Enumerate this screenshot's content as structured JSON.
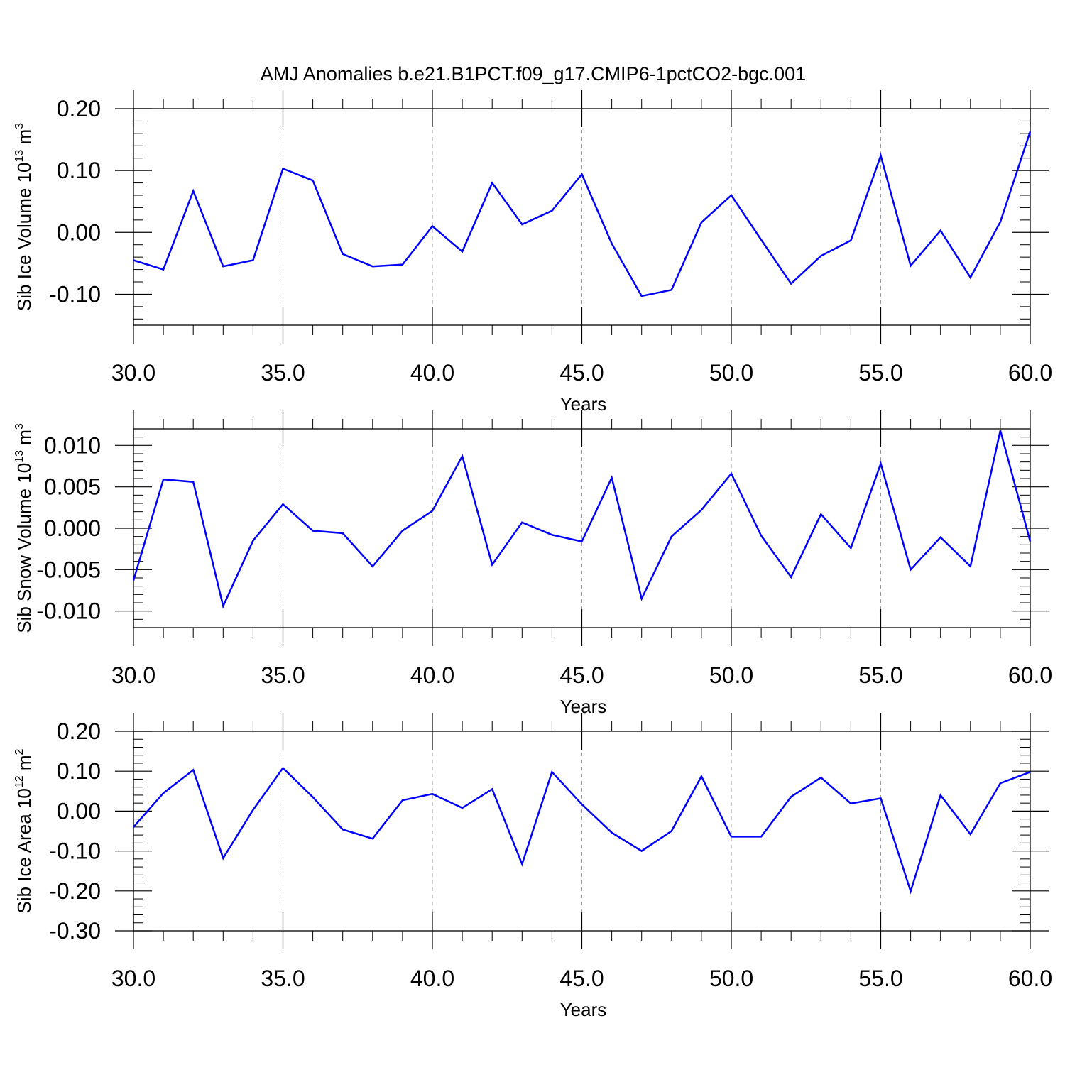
{
  "title": "AMJ Anomalies b.e21.B1PCT.f09_g17.CMIP6-1pctCO2-bgc.001",
  "chart_data": [
    {
      "type": "line",
      "xlabel": "Years",
      "ylabel": "Sib Ice Volume 10",
      "ylabel_exp": "13",
      "ylabel_unit": " m",
      "ylabel_unit_exp": "3",
      "xlim": [
        30,
        60
      ],
      "ylim": [
        -0.15,
        0.2
      ],
      "xticks": [
        30,
        35,
        40,
        45,
        50,
        55,
        60
      ],
      "xtick_labels": [
        "30.0",
        "35.0",
        "40.0",
        "45.0",
        "50.0",
        "55.0",
        "60.0"
      ],
      "yticks": [
        0.2,
        0.1,
        0.0,
        -0.1
      ],
      "ytick_labels": [
        "0.20",
        "0.10",
        "0.00",
        "-0.10"
      ],
      "yminor_step": 0.02,
      "grid": "dashed vertical at major x ticks",
      "line_color": "#0000ff",
      "x": [
        30,
        31,
        32,
        33,
        34,
        35,
        36,
        37,
        38,
        39,
        40,
        41,
        42,
        43,
        44,
        45,
        46,
        47,
        48,
        49,
        50,
        51,
        52,
        53,
        54,
        55,
        56,
        57,
        58,
        59,
        60
      ],
      "y": [
        -0.045,
        -0.06,
        0.067,
        -0.055,
        -0.045,
        0.103,
        0.084,
        -0.035,
        -0.055,
        -0.052,
        0.01,
        -0.031,
        0.08,
        0.013,
        0.035,
        0.094,
        -0.018,
        -0.103,
        -0.093,
        0.016,
        0.06,
        -0.012,
        -0.083,
        -0.038,
        -0.013,
        0.124,
        -0.054,
        0.003,
        -0.073,
        0.017,
        0.163
      ]
    },
    {
      "type": "line",
      "xlabel": "Years",
      "ylabel": "Sib Snow Volume 10",
      "ylabel_exp": "13",
      "ylabel_unit": " m",
      "ylabel_unit_exp": "3",
      "xlim": [
        30,
        60
      ],
      "ylim": [
        -0.012,
        0.012
      ],
      "xticks": [
        30,
        35,
        40,
        45,
        50,
        55,
        60
      ],
      "xtick_labels": [
        "30.0",
        "35.0",
        "40.0",
        "45.0",
        "50.0",
        "55.0",
        "60.0"
      ],
      "yticks": [
        0.01,
        0.005,
        0.0,
        -0.005,
        -0.01
      ],
      "ytick_labels": [
        "0.010",
        "0.005",
        "0.000",
        "-0.005",
        "-0.010"
      ],
      "yminor_step": 0.001,
      "grid": "dashed vertical at major x ticks",
      "line_color": "#0000ff",
      "x": [
        30,
        31,
        32,
        33,
        34,
        35,
        36,
        37,
        38,
        39,
        40,
        41,
        42,
        43,
        44,
        45,
        46,
        47,
        48,
        49,
        50,
        51,
        52,
        53,
        54,
        55,
        56,
        57,
        58,
        59,
        60
      ],
      "y": [
        -0.0063,
        0.0059,
        0.0056,
        -0.0094,
        -0.0015,
        0.0029,
        -0.0003,
        -0.0006,
        -0.0046,
        -0.0003,
        0.0021,
        0.0087,
        -0.0044,
        0.0007,
        -0.0008,
        -0.0016,
        0.0061,
        -0.0085,
        -0.001,
        0.0022,
        0.0066,
        -0.0009,
        -0.0059,
        0.0017,
        -0.0024,
        0.0078,
        -0.005,
        -0.0011,
        -0.0046,
        0.0118,
        -0.0016
      ]
    },
    {
      "type": "line",
      "xlabel": "Years",
      "ylabel": "Sib Ice Area 10",
      "ylabel_exp": "12",
      "ylabel_unit": " m",
      "ylabel_unit_exp": "2",
      "xlim": [
        30,
        60
      ],
      "ylim": [
        -0.3,
        0.2
      ],
      "xticks": [
        30,
        35,
        40,
        45,
        50,
        55,
        60
      ],
      "xtick_labels": [
        "30.0",
        "35.0",
        "40.0",
        "45.0",
        "50.0",
        "55.0",
        "60.0"
      ],
      "yticks": [
        0.2,
        0.1,
        0.0,
        -0.1,
        -0.2,
        -0.3
      ],
      "ytick_labels": [
        "0.20",
        "0.10",
        "0.00",
        "-0.10",
        "-0.20",
        "-0.30"
      ],
      "yminor_step": 0.02,
      "grid": "dashed vertical at major x ticks",
      "line_color": "#0000ff",
      "x": [
        30,
        31,
        32,
        33,
        34,
        35,
        36,
        37,
        38,
        39,
        40,
        41,
        42,
        43,
        44,
        45,
        46,
        47,
        48,
        49,
        50,
        51,
        52,
        53,
        54,
        55,
        56,
        57,
        58,
        59,
        60
      ],
      "y": [
        -0.04,
        0.045,
        0.103,
        -0.118,
        0.003,
        0.108,
        0.035,
        -0.046,
        -0.069,
        0.027,
        0.043,
        0.008,
        0.055,
        -0.133,
        0.098,
        0.017,
        -0.054,
        -0.1,
        -0.05,
        0.087,
        -0.064,
        -0.064,
        0.036,
        0.084,
        0.019,
        0.032,
        -0.201,
        0.04,
        -0.058,
        0.07,
        0.098
      ]
    }
  ]
}
